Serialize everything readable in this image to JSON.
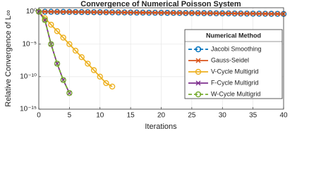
{
  "chart_data": {
    "type": "line",
    "title": "Convergence of Numerical Poisson System",
    "xlabel": "Iterations",
    "ylabel": "Relative Convergence of L∞",
    "xlim": [
      0,
      40
    ],
    "xticks": [
      0,
      5,
      10,
      15,
      20,
      25,
      30,
      35,
      40
    ],
    "ylim": [
      1e-15,
      4
    ],
    "log_y": true,
    "grid": true,
    "yticks": [
      {
        "value": 1,
        "label": "10⁰"
      },
      {
        "value": 1e-05,
        "label": "10⁻⁵"
      },
      {
        "value": 1e-10,
        "label": "10⁻¹⁰"
      },
      {
        "value": 1e-15,
        "label": "10⁻¹⁵"
      }
    ],
    "legend_title": "Numerical Method",
    "legend_position": "right",
    "series": [
      {
        "name": "Jacobi Smoothing",
        "color": "#0072bd",
        "marker": "circle",
        "dashed": true,
        "x": [
          0,
          1,
          2,
          3,
          4,
          5,
          6,
          7,
          8,
          9,
          10,
          11,
          12,
          13,
          14,
          15,
          16,
          17,
          18,
          19,
          20,
          21,
          22,
          23,
          24,
          25,
          26,
          27,
          28,
          29,
          30,
          31,
          32,
          33,
          34,
          35,
          36,
          37,
          38,
          39,
          40
        ],
        "values": [
          1,
          0.98,
          0.96,
          0.941,
          0.922,
          0.904,
          0.886,
          0.868,
          0.851,
          0.834,
          0.817,
          0.801,
          0.785,
          0.769,
          0.754,
          0.739,
          0.724,
          0.709,
          0.695,
          0.681,
          0.668,
          0.654,
          0.641,
          0.628,
          0.616,
          0.603,
          0.591,
          0.58,
          0.568,
          0.557,
          0.545,
          0.535,
          0.524,
          0.513,
          0.503,
          0.493,
          0.483,
          0.474,
          0.464,
          0.455,
          0.446
        ]
      },
      {
        "name": "Gauss-Seidel",
        "color": "#d95319",
        "marker": "x",
        "dashed": false,
        "x": [
          0,
          1,
          2,
          3,
          4,
          5,
          6,
          7,
          8,
          9,
          10,
          11,
          12,
          13,
          14,
          15,
          16,
          17,
          18,
          19,
          20,
          21,
          22,
          23,
          24,
          25,
          26,
          27,
          28,
          29,
          30,
          31,
          32,
          33,
          34,
          35,
          36,
          37,
          38,
          39,
          40
        ],
        "values": [
          1,
          0.98,
          0.96,
          0.941,
          0.922,
          0.904,
          0.886,
          0.868,
          0.851,
          0.834,
          0.817,
          0.801,
          0.785,
          0.769,
          0.754,
          0.739,
          0.724,
          0.709,
          0.695,
          0.681,
          0.668,
          0.654,
          0.641,
          0.628,
          0.616,
          0.603,
          0.591,
          0.58,
          0.568,
          0.557,
          0.545,
          0.535,
          0.524,
          0.513,
          0.503,
          0.493,
          0.483,
          0.474,
          0.464,
          0.455,
          0.446
        ]
      },
      {
        "name": "V-Cycle Multigrid",
        "color": "#edb120",
        "marker": "circle",
        "dashed": false,
        "x": [
          0,
          1,
          2,
          3,
          4,
          5,
          6,
          7,
          8,
          9,
          10,
          11,
          12
        ],
        "values": [
          1,
          0.1,
          0.01,
          0.001,
          0.0001,
          1e-05,
          1e-06,
          1e-07,
          1e-08,
          1e-09,
          1e-10,
          1e-11,
          3e-12
        ]
      },
      {
        "name": "F-Cycle Multigrid",
        "color": "#7e2f8e",
        "marker": "x",
        "dashed": false,
        "x": [
          0,
          1,
          2,
          3,
          4,
          5
        ],
        "values": [
          1,
          0.05,
          1e-05,
          1e-08,
          3e-11,
          3e-13
        ]
      },
      {
        "name": "W-Cycle Multigrid",
        "color": "#77ac30",
        "marker": "circle",
        "dashed": true,
        "x": [
          0,
          1,
          2,
          3,
          4,
          5
        ],
        "values": [
          1,
          0.05,
          1e-05,
          1e-08,
          3e-11,
          3e-13
        ]
      }
    ]
  }
}
